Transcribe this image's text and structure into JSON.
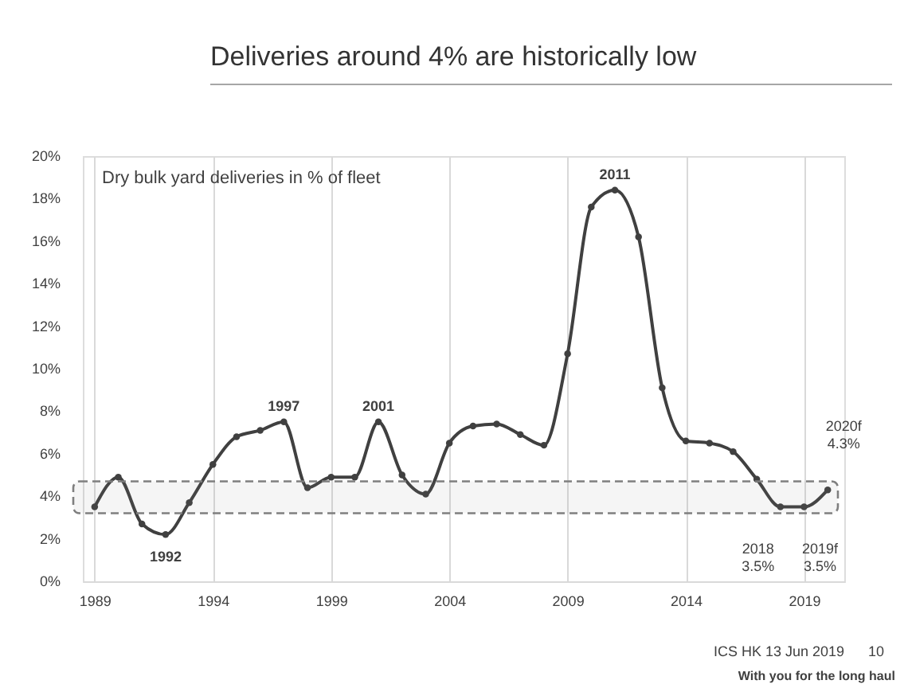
{
  "chart_data": {
    "type": "line",
    "title": "Deliveries around 4% are historically low",
    "x": [
      1989,
      1990,
      1991,
      1992,
      1993,
      1994,
      1995,
      1996,
      1997,
      1998,
      1999,
      2000,
      2001,
      2002,
      2003,
      2004,
      2005,
      2006,
      2007,
      2008,
      2009,
      2010,
      2011,
      2012,
      2013,
      2014,
      2015,
      2016,
      2017,
      2018,
      2019,
      2020
    ],
    "series": [
      {
        "color": "#404040",
        "values": [
          3.5,
          4.9,
          2.7,
          2.2,
          3.7,
          5.5,
          6.8,
          7.1,
          7.5,
          4.4,
          4.9,
          4.9,
          7.5,
          5.0,
          4.1,
          6.5,
          7.3,
          7.4,
          6.9,
          6.4,
          10.7,
          17.6,
          18.4,
          16.2,
          9.1,
          6.6,
          6.5,
          6.1,
          4.8,
          3.5,
          3.5,
          4.3
        ]
      }
    ],
    "xlim": [
      1988.5,
      2020.7
    ],
    "xticks": [
      1989,
      1994,
      1999,
      2004,
      2009,
      2014,
      2019
    ],
    "ylim": [
      0,
      20
    ],
    "yticks": [
      {
        "value": 0,
        "label": "0%"
      },
      {
        "value": 2,
        "label": "2%"
      },
      {
        "value": 4,
        "label": "4%"
      },
      {
        "value": 6,
        "label": "6%"
      },
      {
        "value": 8,
        "label": "8%"
      },
      {
        "value": 10,
        "label": "10%"
      },
      {
        "value": 12,
        "label": "12%"
      },
      {
        "value": 14,
        "label": "14%"
      },
      {
        "value": 16,
        "label": "16%"
      },
      {
        "value": 18,
        "label": "18%"
      },
      {
        "value": 20,
        "label": "20%"
      }
    ],
    "grid": "x",
    "marker": "circle",
    "line_style": "solid",
    "bands": [
      {
        "axis": "y",
        "from": 3.2,
        "to": 4.7,
        "color": "#7f7f7f"
      }
    ],
    "annotations": [
      "Dry bulk yard deliveries in % of fleet",
      {
        "text": "1992",
        "x": 1992,
        "y": 2.2
      },
      {
        "text": "1997",
        "x": 1997,
        "y": 7.5
      },
      {
        "text": "2001",
        "x": 2001,
        "y": 7.5
      },
      {
        "text": "2011",
        "x": 2011,
        "y": 18.4
      },
      {
        "text": "2018\n3.5%",
        "x": 2018,
        "y": 3.5
      },
      {
        "text": "2019f\n3.5%",
        "x": 2019,
        "y": 3.5
      },
      {
        "text": "2020f\n4.3%",
        "x": 2020,
        "y": 4.3
      },
      "ICS HK 13 Jun 2019",
      "10",
      "With you for the long haul"
    ]
  }
}
